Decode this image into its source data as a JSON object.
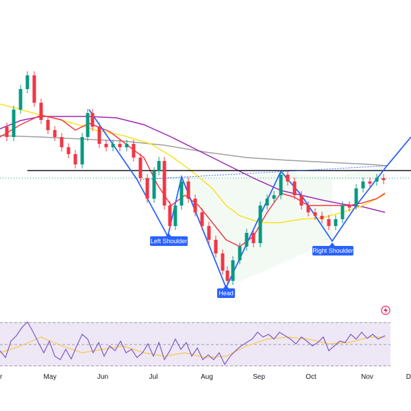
{
  "chart_data": {
    "type": "candlestick",
    "x_axis": {
      "tick_labels": [
        "r",
        "May",
        "Jun",
        "Jul",
        "Aug",
        "Sep",
        "Oct",
        "Nov",
        "D"
      ]
    },
    "pattern": {
      "name_labels": {
        "left_shoulder": "Left Shoulder",
        "head": "Head",
        "right_shoulder": "Right Shoulder"
      },
      "neckline_color": "#131722",
      "zigzag_color": "#2962ff"
    },
    "indicators": {
      "ma_fast_color": "#f23645",
      "ma_mid_color": "#f7e21b",
      "ma_slow_color": "#9c27b0",
      "ma_long_color": "#9e9e9e",
      "rsi_color": "#7e57c2",
      "rsi_signal_color": "#f7c948",
      "rsi_band_color": "#ede7f6"
    },
    "colors": {
      "up": "#089981",
      "down": "#f23645",
      "label_bg": "#2962ff"
    }
  },
  "icons": {
    "ideas": "flash-circle-icon"
  }
}
